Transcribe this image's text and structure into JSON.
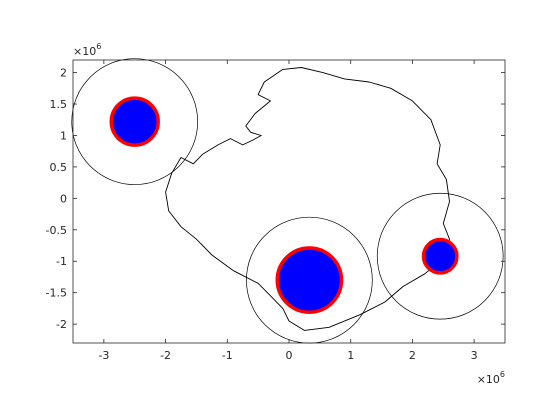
{
  "chart_data": {
    "type": "scatter",
    "x_exponent_label": "×10",
    "x_exponent_power": "6",
    "y_exponent_label": "×10",
    "y_exponent_power": "6",
    "xlim": [
      -3.5,
      3.5
    ],
    "ylim": [
      -2.3,
      2.2
    ],
    "x_ticks": [
      {
        "value": -3,
        "label": "-3"
      },
      {
        "value": -2,
        "label": "-2"
      },
      {
        "value": -1,
        "label": "-1"
      },
      {
        "value": 0,
        "label": "0"
      },
      {
        "value": 1,
        "label": "1"
      },
      {
        "value": 2,
        "label": "2"
      },
      {
        "value": 3,
        "label": "3"
      }
    ],
    "y_ticks": [
      {
        "value": 2,
        "label": "2"
      },
      {
        "value": 1.5,
        "label": "1.5"
      },
      {
        "value": 1,
        "label": "1"
      },
      {
        "value": 0.5,
        "label": "0.5"
      },
      {
        "value": 0,
        "label": "0"
      },
      {
        "value": -0.5,
        "label": "-0.5"
      },
      {
        "value": -1,
        "label": "-1"
      },
      {
        "value": -1.5,
        "label": "-1.5"
      },
      {
        "value": -2,
        "label": "-2"
      }
    ],
    "grid": false,
    "outline_color": "#000000",
    "fill_color": "#0000ff",
    "edge_color": "#ff0000",
    "points": [
      {
        "x": -2.5,
        "y": 1.22,
        "outer_radius": 1.02,
        "inner_radius": 0.38
      },
      {
        "x": 0.33,
        "y": -1.3,
        "outer_radius": 1.02,
        "inner_radius": 0.52
      },
      {
        "x": 2.45,
        "y": -0.92,
        "outer_radius": 1.02,
        "inner_radius": 0.27
      }
    ],
    "coastline": [
      [
        -0.45,
        1.0
      ],
      [
        -0.62,
        1.05
      ],
      [
        -0.7,
        1.15
      ],
      [
        -0.55,
        1.35
      ],
      [
        -0.3,
        1.55
      ],
      [
        -0.5,
        1.65
      ],
      [
        -0.4,
        1.85
      ],
      [
        -0.1,
        2.05
      ],
      [
        0.2,
        2.08
      ],
      [
        0.55,
        2.0
      ],
      [
        0.9,
        1.9
      ],
      [
        1.3,
        1.85
      ],
      [
        1.65,
        1.75
      ],
      [
        2.0,
        1.55
      ],
      [
        2.3,
        1.25
      ],
      [
        2.45,
        0.85
      ],
      [
        2.4,
        0.55
      ],
      [
        2.55,
        0.3
      ],
      [
        2.6,
        -0.05
      ],
      [
        2.5,
        -0.4
      ],
      [
        2.6,
        -0.65
      ],
      [
        2.5,
        -0.95
      ],
      [
        2.2,
        -1.2
      ],
      [
        1.85,
        -1.4
      ],
      [
        1.55,
        -1.65
      ],
      [
        1.15,
        -1.85
      ],
      [
        0.65,
        -2.05
      ],
      [
        0.25,
        -2.1
      ],
      [
        0.0,
        -1.95
      ],
      [
        -0.1,
        -1.75
      ],
      [
        -0.3,
        -1.55
      ],
      [
        -0.5,
        -1.35
      ],
      [
        -0.9,
        -1.15
      ],
      [
        -1.25,
        -0.9
      ],
      [
        -1.5,
        -0.65
      ],
      [
        -1.75,
        -0.45
      ],
      [
        -1.95,
        -0.2
      ],
      [
        -2.0,
        0.1
      ],
      [
        -1.9,
        0.4
      ],
      [
        -1.75,
        0.65
      ],
      [
        -1.55,
        0.55
      ],
      [
        -1.4,
        0.7
      ],
      [
        -1.15,
        0.85
      ],
      [
        -0.95,
        0.95
      ],
      [
        -0.75,
        0.85
      ],
      [
        -0.6,
        0.92
      ],
      [
        -0.45,
        1.0
      ]
    ]
  }
}
